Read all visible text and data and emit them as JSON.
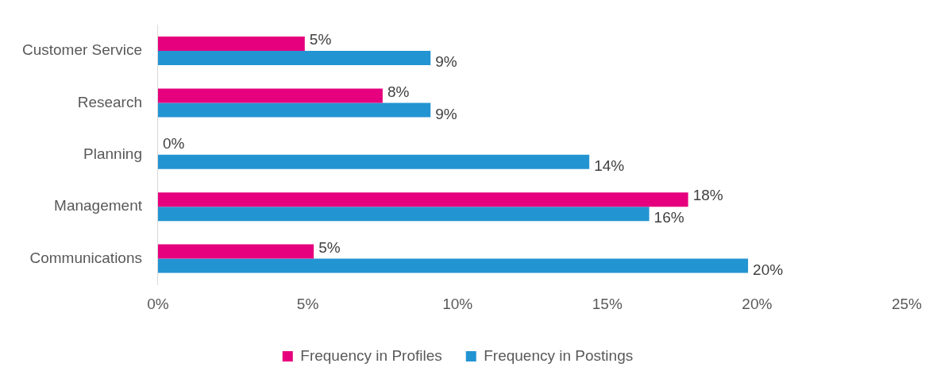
{
  "chart_data": {
    "type": "bar",
    "orientation": "horizontal",
    "categories": [
      "Customer Service",
      "Research",
      "Planning",
      "Management",
      "Communications"
    ],
    "series": [
      {
        "name": "Frequency in Profiles",
        "color": "#e6007e",
        "values": [
          4.9,
          7.5,
          0,
          17.7,
          5.2
        ],
        "value_labels": [
          "5%",
          "8%",
          "0%",
          "18%",
          "5%"
        ]
      },
      {
        "name": "Frequency in Postings",
        "color": "#2394d2",
        "values": [
          9.1,
          9.1,
          14.4,
          16.4,
          19.7
        ],
        "value_labels": [
          "9%",
          "9%",
          "14%",
          "16%",
          "20%"
        ]
      }
    ],
    "xlim": [
      0,
      25
    ],
    "xticks": [
      {
        "value": 0,
        "label": "0%"
      },
      {
        "value": 5,
        "label": "5%"
      },
      {
        "value": 10,
        "label": "10%"
      },
      {
        "value": 15,
        "label": "15%"
      },
      {
        "value": 20,
        "label": "20%"
      },
      {
        "value": 25,
        "label": "25%"
      }
    ],
    "grid": false,
    "legend": "bottom"
  }
}
